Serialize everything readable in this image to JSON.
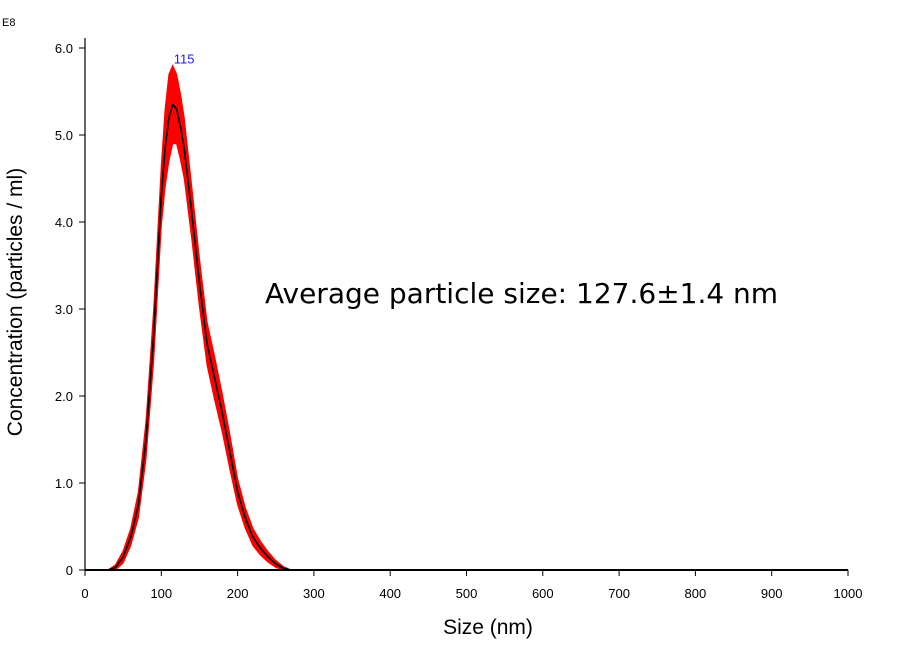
{
  "chart_data": {
    "type": "line",
    "xlabel": "Size (nm)",
    "ylabel": "Concentration (particles / ml)",
    "y_multiplier_label": "E8",
    "xlim": [
      0,
      1000
    ],
    "ylim": [
      0,
      6.0
    ],
    "x_ticks": [
      "0",
      "100",
      "200",
      "300",
      "400",
      "500",
      "600",
      "700",
      "800",
      "900",
      "1000"
    ],
    "y_ticks": [
      "0",
      "1.0",
      "2.0",
      "3.0",
      "4.0",
      "5.0",
      "6.0"
    ],
    "grid": false,
    "peak_label": "115",
    "peak_x": 115,
    "annotation": "Average particle size: 127.6±1.4 nm",
    "colors": {
      "mean_line": "#000000",
      "error_band": "#ff0000",
      "peak_label": "#1a1aff"
    },
    "series": [
      {
        "x": [
          30,
          40,
          50,
          60,
          70,
          80,
          90,
          100,
          105,
          110,
          115,
          120,
          125,
          130,
          140,
          150,
          160,
          170,
          180,
          190,
          200,
          210,
          220,
          230,
          240,
          250,
          260,
          270
        ],
        "values": [
          0.0,
          0.03,
          0.15,
          0.38,
          0.75,
          1.5,
          2.7,
          4.3,
          4.85,
          5.2,
          5.35,
          5.3,
          5.1,
          4.85,
          4.1,
          3.3,
          2.6,
          2.2,
          1.8,
          1.35,
          0.9,
          0.6,
          0.38,
          0.25,
          0.15,
          0.07,
          0.02,
          0.0
        ],
        "error": [
          0.0,
          0.03,
          0.07,
          0.1,
          0.15,
          0.22,
          0.3,
          0.35,
          0.45,
          0.5,
          0.45,
          0.4,
          0.38,
          0.35,
          0.3,
          0.28,
          0.25,
          0.25,
          0.22,
          0.2,
          0.15,
          0.12,
          0.1,
          0.08,
          0.06,
          0.04,
          0.02,
          0.0
        ]
      }
    ]
  }
}
